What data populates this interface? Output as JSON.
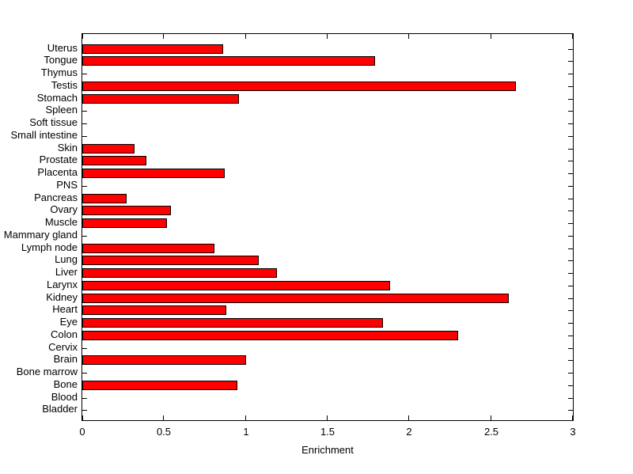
{
  "figure": {
    "background_color": "#ffffff",
    "axis_color": "#000000"
  },
  "chart_data": {
    "type": "bar",
    "orientation": "horizontal",
    "title": "",
    "xlabel": "Enrichment",
    "ylabel": "",
    "xlim": [
      0,
      3
    ],
    "xticks": [
      0,
      0.5,
      1,
      1.5,
      2,
      2.5,
      3
    ],
    "xtick_labels": [
      "0",
      "0.5",
      "1",
      "1.5",
      "2",
      "2.5",
      "3"
    ],
    "grid": false,
    "legend": "none",
    "bar_color": "#ff0000",
    "bar_edge_color": "#000000",
    "categories": [
      "Uterus",
      "Tongue",
      "Thymus",
      "Testis",
      "Stomach",
      "Spleen",
      "Soft tissue",
      "Small intestine",
      "Skin",
      "Prostate",
      "Placenta",
      "PNS",
      "Pancreas",
      "Ovary",
      "Muscle",
      "Mammary gland",
      "Lymph node",
      "Lung",
      "Liver",
      "Larynx",
      "Kidney",
      "Heart",
      "Eye",
      "Colon",
      "Cervix",
      "Brain",
      "Bone marrow",
      "Bone",
      "Blood",
      "Bladder"
    ],
    "values": [
      0.86,
      1.79,
      0,
      2.65,
      0.96,
      0,
      0,
      0,
      0.32,
      0.39,
      0.87,
      0,
      0.27,
      0.54,
      0.52,
      0,
      0.81,
      1.08,
      1.19,
      1.88,
      2.61,
      0.88,
      1.84,
      2.3,
      0,
      1.0,
      0,
      0.95,
      0,
      0
    ]
  }
}
